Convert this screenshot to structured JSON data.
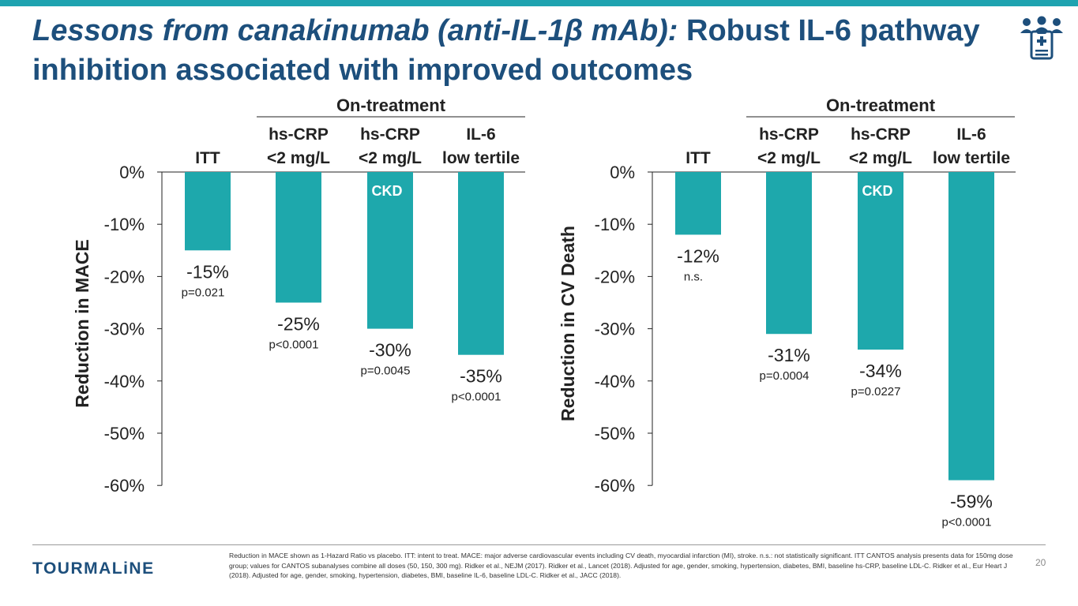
{
  "slide": {
    "title_italic": "Lessons from canakinumab (anti-IL-1β mAb):",
    "title_rest": " Robust IL-6 pathway inhibition associated with improved outcomes",
    "logo": "TOURMALiNE",
    "page_number": "20",
    "footnote": "Reduction in MACE shown as 1-Hazard Ratio vs placebo. ITT: intent to treat. MACE: major adverse cardiovascular events including CV death, myocardial infarction (MI), stroke. n.s.: not statistically significant. ITT CANTOS analysis presents data for 150mg dose group; values for CANTOS subanalyses combine all doses (50, 150, 300 mg). Ridker et al., NEJM (2017). Ridker et al., Lancet (2018). Adjusted for age, gender, smoking, hypertension, diabetes, BMI, baseline hs-CRP, baseline LDL-C. Ridker et al., Eur Heart J (2018). Adjusted for age, gender, smoking, hypertension, diabetes, BMI, baseline IL-6, baseline LDL-C. Ridker et al., JACC (2018).",
    "icon": "medical-team-clipboard-icon"
  },
  "colors": {
    "bar": "#1ea8ac",
    "title": "#1d4f7c",
    "accent": "#1ea3b0"
  },
  "chart_data": [
    {
      "type": "bar",
      "title": "",
      "ylabel": "Reduction in MACE",
      "group_label": "On-treatment",
      "categories": [
        [
          "ITT"
        ],
        [
          "hs-CRP",
          "<2 mg/L"
        ],
        [
          "hs-CRP",
          "<2 mg/L"
        ],
        [
          "IL-6",
          "low tertile"
        ]
      ],
      "values": [
        -15,
        -25,
        -30,
        -35
      ],
      "value_labels": [
        "-15%",
        "-25%",
        "-30%",
        "-35%"
      ],
      "p_values": [
        "p=0.021",
        "p<0.0001",
        "p=0.0045",
        "p<0.0001"
      ],
      "bar_tags": [
        "",
        "",
        "CKD",
        ""
      ],
      "yticks": [
        0,
        -10,
        -20,
        -30,
        -40,
        -50,
        -60
      ],
      "ytick_labels": [
        "0%",
        "-10%",
        "-20%",
        "-30%",
        "-40%",
        "-50%",
        "-60%"
      ],
      "ylim": [
        -60,
        0
      ]
    },
    {
      "type": "bar",
      "title": "",
      "ylabel": "Reduction in CV Death",
      "group_label": "On-treatment",
      "categories": [
        [
          "ITT"
        ],
        [
          "hs-CRP",
          "<2 mg/L"
        ],
        [
          "hs-CRP",
          "<2 mg/L"
        ],
        [
          "IL-6",
          "low tertile"
        ]
      ],
      "values": [
        -12,
        -31,
        -34,
        -59
      ],
      "value_labels": [
        "-12%",
        "-31%",
        "-34%",
        "-59%"
      ],
      "p_values": [
        "n.s.",
        "p=0.0004",
        "p=0.0227",
        "p<0.0001"
      ],
      "bar_tags": [
        "",
        "",
        "CKD",
        ""
      ],
      "yticks": [
        0,
        -10,
        -20,
        -30,
        -40,
        -50,
        -60
      ],
      "ytick_labels": [
        "0%",
        "-10%",
        "-20%",
        "-30%",
        "-40%",
        "-50%",
        "-60%"
      ],
      "ylim": [
        -60,
        0
      ]
    }
  ]
}
